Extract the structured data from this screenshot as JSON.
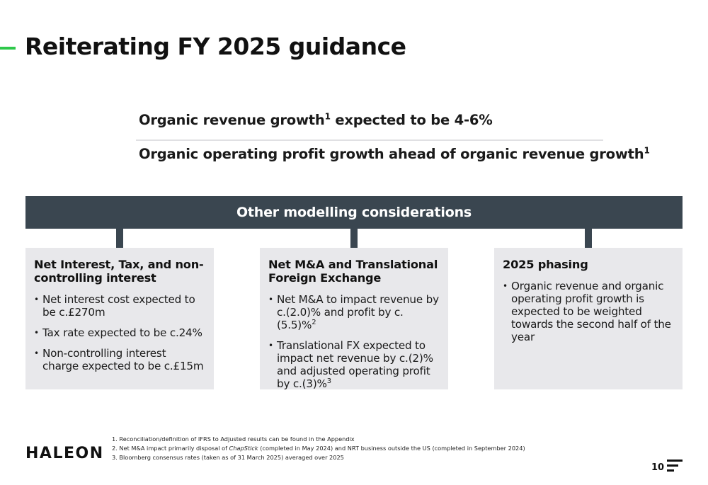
{
  "title": "Reiterating FY 2025 guidance",
  "guidance": {
    "line1_prefix": "Organic revenue growth",
    "line1_sup": "1",
    "line1_suffix": " expected to be 4-6%",
    "line2_prefix": "Organic operating profit growth ahead of organic revenue growth",
    "line2_sup": "1"
  },
  "banner": "Other modelling considerations",
  "cards": [
    {
      "title": "Net Interest, Tax, and non-controlling interest",
      "bullets": [
        "Net interest cost expected to be c.£270m",
        "Tax rate expected to be c.24%",
        "Non-controlling interest charge expected to be c.£15m"
      ]
    },
    {
      "title": "Net M&A and Translational Foreign Exchange",
      "bullets": [
        {
          "text": "Net M&A to impact revenue by c.(2.0)% and profit by c.(5.5)%",
          "sup": "2"
        },
        {
          "text": "Translational FX expected to impact net revenue by c.(2)% and adjusted operating profit by c.(3)%",
          "sup": "3"
        }
      ]
    },
    {
      "title": "2025 phasing",
      "bullets": [
        "Organic revenue and organic operating profit growth is expected to be weighted towards the second half of the year"
      ]
    }
  ],
  "logo": "HALEON",
  "footnotes": {
    "f1": "1. Reconciliation/definition of IFRS to Adjusted results can be found in the Appendix",
    "f2_prefix": "2. Net M&A impact primarily disposal of ",
    "f2_italic": "ChapStick",
    "f2_suffix": " (completed in May 2024) and NRT business outside the US (completed in September 2024)",
    "f3": "3. Bloomberg consensus rates (taken as of 31 March 2025) averaged over 2025"
  },
  "page_number": "10",
  "colors": {
    "accent": "#2ec84a",
    "banner_bg": "#3a4650",
    "card_bg": "#e8e8eb"
  },
  "icons": {
    "menu": "menu-lines-icon"
  }
}
